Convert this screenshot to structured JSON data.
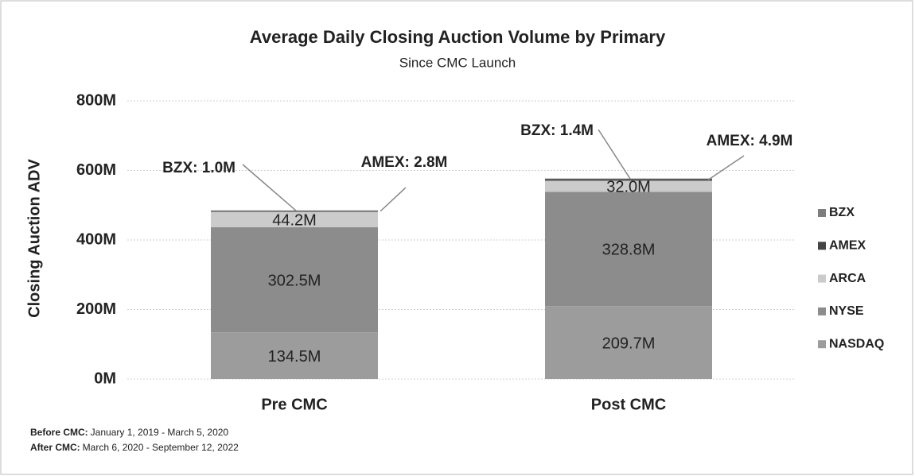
{
  "chart_data": {
    "type": "stacked_bar",
    "title": "Average Daily Closing Auction Volume by Primary",
    "subtitle": "Since CMC Launch",
    "y_axis_label": "Closing Auction ADV",
    "categories": [
      "Pre CMC",
      "Post CMC"
    ],
    "series": [
      {
        "name": "NASDAQ",
        "color": "#9c9c9c",
        "values": [
          134.5,
          209.7
        ],
        "value_labels": [
          "134.5M",
          "209.7M"
        ]
      },
      {
        "name": "NYSE",
        "color": "#8c8c8c",
        "values": [
          302.5,
          328.8
        ],
        "value_labels": [
          "302.5M",
          "328.8M"
        ]
      },
      {
        "name": "ARCA",
        "color": "#cbcbcb",
        "values": [
          44.2,
          32.0
        ],
        "value_labels": [
          "44.2M",
          "32.0M"
        ]
      },
      {
        "name": "AMEX",
        "color": "#444444",
        "values": [
          2.8,
          4.9
        ],
        "value_labels": [
          "AMEX: 2.8M",
          "AMEX: 4.9M"
        ]
      },
      {
        "name": "BZX",
        "color": "#7d7d7d",
        "values": [
          1.0,
          1.4
        ],
        "value_labels": [
          "BZX: 1.0M",
          "BZX: 1.4M"
        ]
      }
    ],
    "ylim": [
      0,
      800
    ],
    "yticks": [
      {
        "value": 0,
        "label": "0M"
      },
      {
        "value": 200,
        "label": "200M"
      },
      {
        "value": 400,
        "label": "400M"
      },
      {
        "value": 600,
        "label": "600M"
      },
      {
        "value": 800,
        "label": "800M"
      }
    ],
    "grid": true,
    "legend": "right",
    "notes": [
      {
        "label": "Before CMC:",
        "text": "January 1, 2019 - March 5, 2020"
      },
      {
        "label": "After CMC:",
        "text": "March 6, 2020 - September 12, 2022"
      }
    ]
  }
}
